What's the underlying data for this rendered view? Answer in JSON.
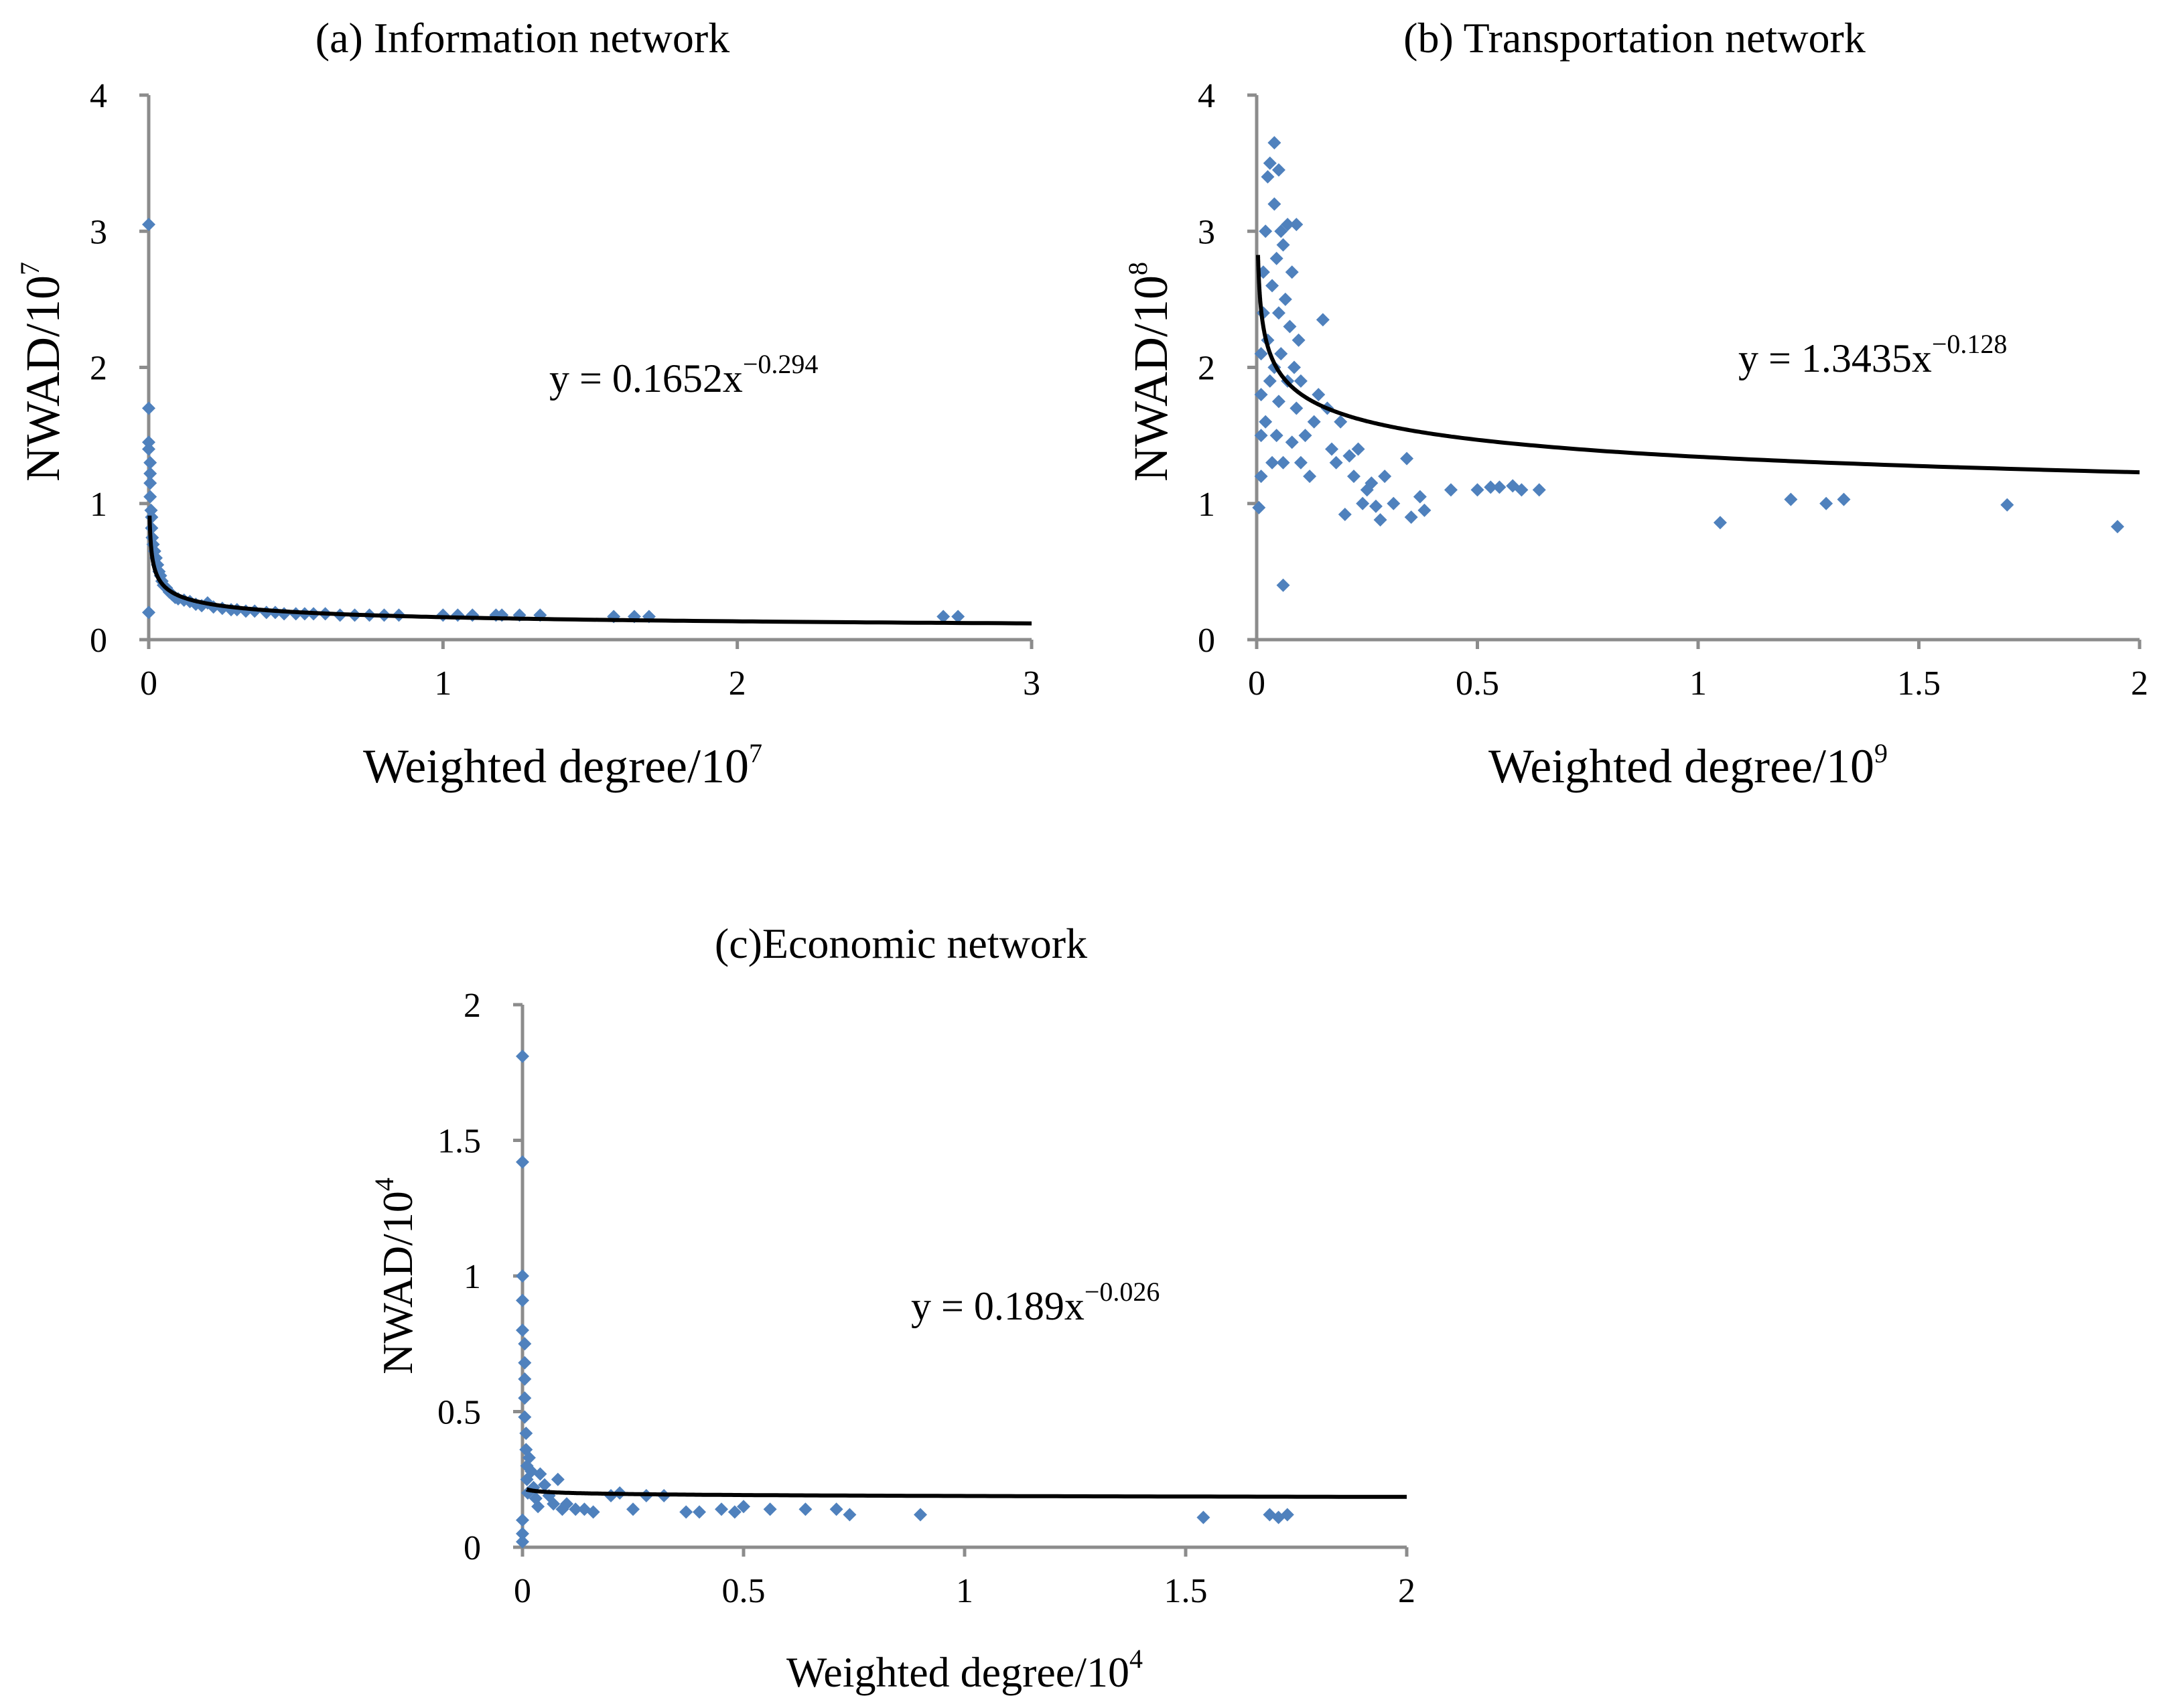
{
  "chart_data": [
    {
      "id": "a",
      "type": "scatter",
      "title": "(a) Information network",
      "xlabel": "Weighted degree/10",
      "xlabel_exp": "7",
      "ylabel": "NWAD/10",
      "ylabel_exp": "7",
      "xlim": [
        0,
        3
      ],
      "ylim": [
        0,
        4
      ],
      "xticks": [
        0,
        1,
        2,
        3
      ],
      "xtick_labels": [
        "0",
        "1",
        "2",
        "3"
      ],
      "yticks": [
        0,
        1,
        2,
        3,
        4
      ],
      "ytick_labels": [
        "0",
        "1",
        "2",
        "3",
        "4"
      ],
      "grid": false,
      "marker_color": "#4f81bd",
      "equation": "y = 0.1652x",
      "equation_exp": "−0.294",
      "fit": {
        "model": "power",
        "a": 0.1652,
        "b": -0.294
      },
      "points": [
        [
          0.0,
          3.05
        ],
        [
          0.0,
          0.2
        ],
        [
          0.0,
          1.7
        ],
        [
          0.0,
          1.45
        ],
        [
          0.0,
          1.4
        ],
        [
          0.005,
          1.3
        ],
        [
          0.005,
          1.22
        ],
        [
          0.005,
          1.15
        ],
        [
          0.005,
          1.05
        ],
        [
          0.008,
          0.95
        ],
        [
          0.01,
          0.9
        ],
        [
          0.01,
          0.82
        ],
        [
          0.012,
          0.75
        ],
        [
          0.015,
          0.7
        ],
        [
          0.02,
          0.65
        ],
        [
          0.025,
          0.6
        ],
        [
          0.03,
          0.55
        ],
        [
          0.035,
          0.5
        ],
        [
          0.04,
          0.47
        ],
        [
          0.045,
          0.43
        ],
        [
          0.05,
          0.4
        ],
        [
          0.06,
          0.38
        ],
        [
          0.07,
          0.35
        ],
        [
          0.08,
          0.33
        ],
        [
          0.09,
          0.31
        ],
        [
          0.1,
          0.3
        ],
        [
          0.12,
          0.29
        ],
        [
          0.14,
          0.28
        ],
        [
          0.16,
          0.26
        ],
        [
          0.18,
          0.25
        ],
        [
          0.2,
          0.27
        ],
        [
          0.22,
          0.24
        ],
        [
          0.25,
          0.23
        ],
        [
          0.28,
          0.22
        ],
        [
          0.3,
          0.22
        ],
        [
          0.33,
          0.21
        ],
        [
          0.36,
          0.21
        ],
        [
          0.4,
          0.2
        ],
        [
          0.43,
          0.2
        ],
        [
          0.46,
          0.19
        ],
        [
          0.5,
          0.19
        ],
        [
          0.53,
          0.19
        ],
        [
          0.56,
          0.19
        ],
        [
          0.6,
          0.19
        ],
        [
          0.65,
          0.18
        ],
        [
          0.7,
          0.18
        ],
        [
          0.75,
          0.18
        ],
        [
          0.8,
          0.18
        ],
        [
          0.85,
          0.18
        ],
        [
          1.0,
          0.18
        ],
        [
          1.05,
          0.18
        ],
        [
          1.1,
          0.18
        ],
        [
          1.18,
          0.18
        ],
        [
          1.2,
          0.18
        ],
        [
          1.26,
          0.18
        ],
        [
          1.33,
          0.18
        ],
        [
          1.58,
          0.17
        ],
        [
          1.65,
          0.17
        ],
        [
          1.7,
          0.17
        ],
        [
          2.7,
          0.17
        ],
        [
          2.75,
          0.17
        ]
      ]
    },
    {
      "id": "b",
      "type": "scatter",
      "title": "(b) Transportation network",
      "xlabel": "Weighted degree/10",
      "xlabel_exp": "9",
      "ylabel": "NWAD/10",
      "ylabel_exp": "8",
      "xlim": [
        0,
        2
      ],
      "ylim": [
        0,
        4
      ],
      "xticks": [
        0,
        0.5,
        1,
        1.5,
        2
      ],
      "xtick_labels": [
        "0",
        "0.5",
        "1",
        "1.5",
        "2"
      ],
      "yticks": [
        0,
        1,
        2,
        3,
        4
      ],
      "ytick_labels": [
        "0",
        "1",
        "2",
        "3",
        "4"
      ],
      "grid": false,
      "marker_color": "#4f81bd",
      "equation": "y = 1.3435x",
      "equation_exp": "−0.128",
      "fit": {
        "model": "power",
        "a": 1.3435,
        "b": -0.128
      },
      "points": [
        [
          0.005,
          0.97
        ],
        [
          0.01,
          1.2
        ],
        [
          0.01,
          1.5
        ],
        [
          0.01,
          1.8
        ],
        [
          0.01,
          2.1
        ],
        [
          0.015,
          2.4
        ],
        [
          0.015,
          2.7
        ],
        [
          0.02,
          3.0
        ],
        [
          0.02,
          1.6
        ],
        [
          0.025,
          2.2
        ],
        [
          0.025,
          3.4
        ],
        [
          0.03,
          3.5
        ],
        [
          0.03,
          1.9
        ],
        [
          0.035,
          2.6
        ],
        [
          0.035,
          1.3
        ],
        [
          0.04,
          3.65
        ],
        [
          0.04,
          3.2
        ],
        [
          0.04,
          2.0
        ],
        [
          0.045,
          2.8
        ],
        [
          0.045,
          1.5
        ],
        [
          0.05,
          3.45
        ],
        [
          0.05,
          2.4
        ],
        [
          0.05,
          1.75
        ],
        [
          0.055,
          3.0
        ],
        [
          0.055,
          2.1
        ],
        [
          0.06,
          0.4
        ],
        [
          0.06,
          2.9
        ],
        [
          0.06,
          1.3
        ],
        [
          0.065,
          2.5
        ],
        [
          0.07,
          1.9
        ],
        [
          0.07,
          3.05
        ],
        [
          0.075,
          2.3
        ],
        [
          0.08,
          1.45
        ],
        [
          0.08,
          2.7
        ],
        [
          0.085,
          2.0
        ],
        [
          0.09,
          1.7
        ],
        [
          0.09,
          3.05
        ],
        [
          0.095,
          2.2
        ],
        [
          0.1,
          1.3
        ],
        [
          0.1,
          1.9
        ],
        [
          0.11,
          1.5
        ],
        [
          0.12,
          1.2
        ],
        [
          0.13,
          1.6
        ],
        [
          0.14,
          1.8
        ],
        [
          0.15,
          2.35
        ],
        [
          0.16,
          1.7
        ],
        [
          0.17,
          1.4
        ],
        [
          0.18,
          1.3
        ],
        [
          0.19,
          1.6
        ],
        [
          0.2,
          0.92
        ],
        [
          0.21,
          1.35
        ],
        [
          0.22,
          1.2
        ],
        [
          0.23,
          1.4
        ],
        [
          0.24,
          1.0
        ],
        [
          0.25,
          1.1
        ],
        [
          0.26,
          1.15
        ],
        [
          0.27,
          0.98
        ],
        [
          0.28,
          0.88
        ],
        [
          0.29,
          1.2
        ],
        [
          0.31,
          1.0
        ],
        [
          0.34,
          1.33
        ],
        [
          0.35,
          0.9
        ],
        [
          0.37,
          1.05
        ],
        [
          0.38,
          0.95
        ],
        [
          0.44,
          1.1
        ],
        [
          0.5,
          1.1
        ],
        [
          0.53,
          1.12
        ],
        [
          0.55,
          1.12
        ],
        [
          0.58,
          1.13
        ],
        [
          0.6,
          1.1
        ],
        [
          0.64,
          1.1
        ],
        [
          1.05,
          0.86
        ],
        [
          1.21,
          1.03
        ],
        [
          1.29,
          1.0
        ],
        [
          1.33,
          1.03
        ],
        [
          1.7,
          0.99
        ],
        [
          1.95,
          0.83
        ]
      ]
    },
    {
      "id": "c",
      "type": "scatter",
      "title": "(c)Economic network",
      "xlabel": "Weighted degree/10",
      "xlabel_exp": "4",
      "ylabel": "NWAD/10",
      "ylabel_exp": "4",
      "xlim": [
        0,
        2
      ],
      "ylim": [
        0,
        2
      ],
      "xticks": [
        0,
        0.5,
        1,
        1.5,
        2
      ],
      "xtick_labels": [
        "0",
        "0.5",
        "1",
        "1.5",
        "2"
      ],
      "yticks": [
        0,
        0.5,
        1,
        1.5,
        2
      ],
      "ytick_labels": [
        "0",
        "0.5",
        "1",
        "1.5",
        "2"
      ],
      "grid": false,
      "marker_color": "#4f81bd",
      "equation": "y = 0.189x",
      "equation_exp": "−0.026",
      "fit": {
        "model": "power",
        "a": 0.189,
        "b": -0.026,
        "x_start": 0.01
      },
      "points": [
        [
          0.0,
          1.81
        ],
        [
          0.0,
          1.42
        ],
        [
          0.0,
          1.0
        ],
        [
          0.0,
          0.91
        ],
        [
          0.0,
          0.8
        ],
        [
          0.0,
          0.02
        ],
        [
          0.0,
          0.05
        ],
        [
          0.0,
          0.1
        ],
        [
          0.005,
          0.75
        ],
        [
          0.005,
          0.68
        ],
        [
          0.005,
          0.62
        ],
        [
          0.005,
          0.55
        ],
        [
          0.005,
          0.48
        ],
        [
          0.008,
          0.42
        ],
        [
          0.008,
          0.36
        ],
        [
          0.01,
          0.3
        ],
        [
          0.01,
          0.25
        ],
        [
          0.012,
          0.2
        ],
        [
          0.015,
          0.33
        ],
        [
          0.02,
          0.28
        ],
        [
          0.025,
          0.22
        ],
        [
          0.03,
          0.18
        ],
        [
          0.035,
          0.15
        ],
        [
          0.04,
          0.27
        ],
        [
          0.05,
          0.23
        ],
        [
          0.06,
          0.19
        ],
        [
          0.07,
          0.16
        ],
        [
          0.08,
          0.25
        ],
        [
          0.09,
          0.14
        ],
        [
          0.1,
          0.16
        ],
        [
          0.12,
          0.14
        ],
        [
          0.14,
          0.14
        ],
        [
          0.16,
          0.13
        ],
        [
          0.2,
          0.19
        ],
        [
          0.22,
          0.2
        ],
        [
          0.25,
          0.14
        ],
        [
          0.28,
          0.19
        ],
        [
          0.32,
          0.19
        ],
        [
          0.37,
          0.13
        ],
        [
          0.4,
          0.13
        ],
        [
          0.45,
          0.14
        ],
        [
          0.48,
          0.13
        ],
        [
          0.5,
          0.15
        ],
        [
          0.56,
          0.14
        ],
        [
          0.64,
          0.14
        ],
        [
          0.71,
          0.14
        ],
        [
          0.74,
          0.12
        ],
        [
          0.9,
          0.12
        ],
        [
          1.54,
          0.11
        ],
        [
          1.69,
          0.12
        ],
        [
          1.71,
          0.11
        ],
        [
          1.73,
          0.12
        ]
      ]
    }
  ]
}
